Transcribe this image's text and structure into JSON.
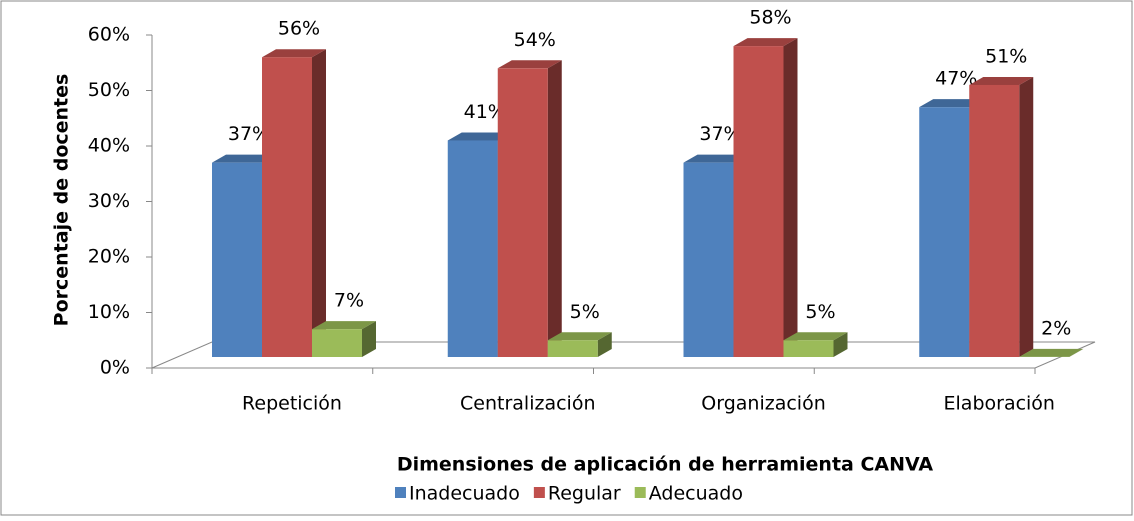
{
  "chart_data": {
    "type": "bar3d",
    "y_label": "Porcentaje de docentes",
    "x_label": "Dimensiones de aplicación de herramienta CANVA",
    "categories": [
      "Repetición",
      "Centralización",
      "Organización",
      "Elaboración"
    ],
    "series": [
      {
        "name": "Inadecuado",
        "color": "#4f81bd",
        "values": [
          37,
          41,
          37,
          47
        ],
        "value_labels": [
          "37%",
          "41%",
          "37%",
          "47%"
        ]
      },
      {
        "name": "Regular",
        "color": "#c0504d",
        "values": [
          56,
          54,
          58,
          51
        ],
        "value_labels": [
          "56%",
          "54%",
          "58%",
          "51%"
        ]
      },
      {
        "name": "Adecuado",
        "color": "#9bbb59",
        "values": [
          7,
          5,
          5,
          2
        ],
        "value_labels": [
          "7%",
          "5%",
          "5%",
          "2%"
        ]
      }
    ],
    "ylim": [
      0,
      60
    ],
    "yticks": [
      {
        "value": 0,
        "label": "0%"
      },
      {
        "value": 10,
        "label": "10%"
      },
      {
        "value": 20,
        "label": "20%"
      },
      {
        "value": 30,
        "label": "30%"
      },
      {
        "value": 40,
        "label": "40%"
      },
      {
        "value": 50,
        "label": "50%"
      },
      {
        "value": 60,
        "label": "60%"
      }
    ],
    "legend": "bottom"
  }
}
